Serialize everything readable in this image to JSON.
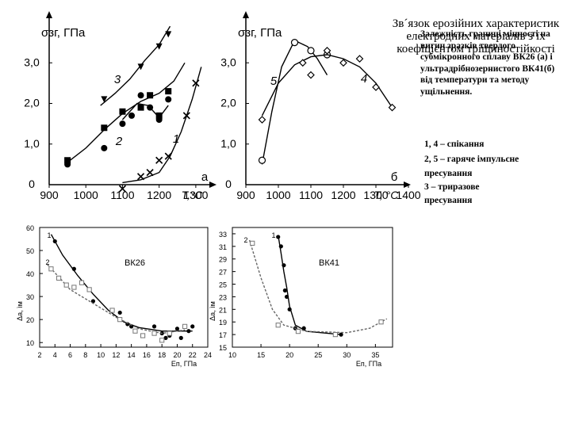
{
  "titles": {
    "main": "Зв´язок ерозійних характеристик електродних матеріалів з їх коефіцієнтом тріщиностійкості",
    "sub": "Залежність границі міцності на вигин зразків твердого субмікронного сплаву ВК26 (а) і ультрадрібнозернистого ВК41(б) від температури та методу ущільнення."
  },
  "legend_text": [
    "1, 4 – спікання",
    "2, 5 – гаряче імпульсне",
    "пресування",
    "3 –    триразове",
    "пресування"
  ],
  "chart_data": [
    {
      "id": "a",
      "type": "scatter",
      "title": "",
      "ylabel": "σзг, ГПа",
      "xlabel": "T,°C",
      "panel_label": "а",
      "xlim": [
        900,
        1350
      ],
      "ylim": [
        0,
        4.0
      ],
      "xticks": [
        "900",
        "1000",
        "1100",
        "1200",
        "1300"
      ],
      "yticks": [
        "0",
        "1,0",
        "2,0",
        "3,0"
      ],
      "series": [
        {
          "name": "3",
          "marker": "triangle",
          "points": [
            [
              1050,
              2.1
            ],
            [
              1150,
              2.9
            ],
            [
              1200,
              3.4
            ],
            [
              1225,
              3.7
            ]
          ],
          "curve": [
            [
              1040,
              1.95
            ],
            [
              1080,
              2.25
            ],
            [
              1120,
              2.6
            ],
            [
              1160,
              3.05
            ],
            [
              1200,
              3.45
            ],
            [
              1230,
              3.9
            ]
          ]
        },
        {
          "name": "2",
          "marker": "square",
          "points": [
            [
              950,
              0.6
            ],
            [
              1050,
              1.4
            ],
            [
              1100,
              1.8
            ],
            [
              1150,
              1.9
            ],
            [
              1175,
              2.2
            ],
            [
              1200,
              1.7
            ],
            [
              1225,
              2.3
            ]
          ],
          "curve": [
            [
              950,
              0.55
            ],
            [
              1000,
              0.9
            ],
            [
              1050,
              1.35
            ],
            [
              1100,
              1.75
            ],
            [
              1150,
              2.05
            ],
            [
              1200,
              2.25
            ],
            [
              1240,
              2.55
            ],
            [
              1270,
              3.0
            ]
          ]
        },
        {
          "name": "",
          "marker": "circle",
          "points": [
            [
              950,
              0.5
            ],
            [
              1050,
              0.9
            ],
            [
              1100,
              1.5
            ],
            [
              1125,
              1.7
            ],
            [
              1150,
              2.2
            ],
            [
              1175,
              1.9
            ],
            [
              1200,
              1.6
            ],
            [
              1225,
              2.1
            ]
          ],
          "curve": [
            [
              1100,
              1.6
            ],
            [
              1140,
              2.0
            ],
            [
              1170,
              1.95
            ],
            [
              1200,
              1.65
            ],
            [
              1225,
              1.95
            ]
          ]
        },
        {
          "name": "1",
          "marker": "cross",
          "points": [
            [
              1100,
              -0.1
            ],
            [
              1150,
              0.2
            ],
            [
              1175,
              0.3
            ],
            [
              1200,
              0.6
            ],
            [
              1225,
              0.7
            ],
            [
              1275,
              1.7
            ],
            [
              1300,
              2.5
            ]
          ],
          "curve": [
            [
              1100,
              0.05
            ],
            [
              1150,
              0.12
            ],
            [
              1200,
              0.3
            ],
            [
              1230,
              0.7
            ],
            [
              1260,
              1.3
            ],
            [
              1290,
              2.1
            ],
            [
              1315,
              2.9
            ]
          ]
        }
      ],
      "series_labels": [
        "3",
        "2",
        "1"
      ]
    },
    {
      "id": "b",
      "type": "scatter",
      "title": "",
      "ylabel": "σзг, ГПа",
      "xlabel": "T, °C",
      "panel_label": "б",
      "xlim": [
        900,
        1400
      ],
      "ylim": [
        0,
        4.0
      ],
      "xticks": [
        "900",
        "1000",
        "1100",
        "1200",
        "1300",
        "1400"
      ],
      "yticks": [
        "0",
        "1,0",
        "2,0",
        "3,0"
      ],
      "series": [
        {
          "name": "5",
          "marker": "circle-open",
          "points": [
            [
              950,
              0.6
            ],
            [
              1050,
              3.5
            ],
            [
              1100,
              3.3
            ],
            [
              1150,
              3.2
            ]
          ],
          "curve": [
            [
              950,
              0.5
            ],
            [
              980,
              1.8
            ],
            [
              1010,
              2.9
            ],
            [
              1050,
              3.55
            ],
            [
              1090,
              3.4
            ],
            [
              1120,
              3.1
            ],
            [
              1150,
              2.7
            ]
          ]
        },
        {
          "name": "4",
          "marker": "diamond",
          "points": [
            [
              950,
              1.6
            ],
            [
              1075,
              3.0
            ],
            [
              1100,
              2.7
            ],
            [
              1150,
              3.3
            ],
            [
              1200,
              3.0
            ],
            [
              1250,
              3.1
            ],
            [
              1300,
              2.4
            ],
            [
              1350,
              1.9
            ]
          ],
          "curve": [
            [
              950,
              1.7
            ],
            [
              1000,
              2.5
            ],
            [
              1050,
              2.95
            ],
            [
              1100,
              3.15
            ],
            [
              1150,
              3.2
            ],
            [
              1200,
              3.1
            ],
            [
              1250,
              2.9
            ],
            [
              1300,
              2.5
            ],
            [
              1350,
              1.9
            ]
          ]
        }
      ],
      "series_labels": [
        "5",
        "4"
      ]
    },
    {
      "id": "c",
      "type": "scatter",
      "title": "",
      "annotation": "ВК26",
      "ylabel": "Δа, ìм",
      "xlabel": "Еп, ГПа",
      "xlim": [
        2,
        24
      ],
      "ylim": [
        8,
        60
      ],
      "xticks": [
        "2",
        "4",
        "6",
        "8",
        "10",
        "12",
        "14",
        "16",
        "18",
        "20",
        "22",
        "24"
      ],
      "yticks": [
        "10",
        "20",
        "30",
        "40",
        "50",
        "60"
      ],
      "series": [
        {
          "name": "1",
          "marker": "dot",
          "points": [
            [
              4,
              54
            ],
            [
              6.5,
              42
            ],
            [
              9,
              28
            ],
            [
              12.5,
              23
            ],
            [
              13.5,
              18
            ],
            [
              14,
              17
            ],
            [
              17,
              17
            ],
            [
              18,
              14
            ],
            [
              18.5,
              12
            ],
            [
              19,
              13
            ],
            [
              20,
              16
            ],
            [
              20.5,
              12
            ],
            [
              21.5,
              15
            ],
            [
              22,
              17
            ]
          ],
          "curve": [
            [
              3.5,
              57
            ],
            [
              5,
              48
            ],
            [
              7,
              39
            ],
            [
              9,
              31
            ],
            [
              11,
              24
            ],
            [
              13,
              19
            ],
            [
              15,
              16.5
            ],
            [
              18,
              15
            ],
            [
              22,
              15
            ]
          ]
        },
        {
          "name": "2",
          "marker": "square-open",
          "points": [
            [
              3.5,
              42
            ],
            [
              4.5,
              38
            ],
            [
              5.5,
              35
            ],
            [
              6.5,
              34
            ],
            [
              7.5,
              36
            ],
            [
              8.5,
              33
            ],
            [
              11.5,
              24
            ],
            [
              12.5,
              20
            ],
            [
              14.5,
              15
            ],
            [
              15.5,
              13
            ],
            [
              17,
              14
            ],
            [
              18,
              11
            ],
            [
              19,
              14
            ],
            [
              21,
              17
            ]
          ],
          "curve": [
            [
              3,
              44
            ],
            [
              6,
              33
            ],
            [
              9,
              27
            ],
            [
              12,
              21
            ],
            [
              15,
              16
            ],
            [
              18,
              14
            ],
            [
              21,
              15.5
            ]
          ]
        }
      ],
      "series_labels": [
        "1",
        "2"
      ]
    },
    {
      "id": "d",
      "type": "scatter",
      "title": "",
      "annotation": "ВК41",
      "ylabel": "Δа, ìм",
      "xlabel": "Еп, ГПа",
      "xlim": [
        10,
        38
      ],
      "ylim": [
        15,
        34
      ],
      "xticks": [
        "10",
        "15",
        "20",
        "25",
        "30",
        "35"
      ],
      "yticks": [
        "15",
        "17",
        "19",
        "21",
        "23",
        "25",
        "27",
        "29",
        "31",
        "33"
      ],
      "series": [
        {
          "name": "1",
          "marker": "dot",
          "points": [
            [
              18,
              32.5
            ],
            [
              18.5,
              31
            ],
            [
              19,
              28
            ],
            [
              19.2,
              24
            ],
            [
              19.5,
              23
            ],
            [
              20,
              21
            ],
            [
              21,
              18
            ],
            [
              22.5,
              18
            ],
            [
              29,
              17
            ]
          ],
          "curve": [
            [
              18,
              32.8
            ],
            [
              18.5,
              30
            ],
            [
              19,
              27
            ],
            [
              19.5,
              24.5
            ],
            [
              20,
              21.5
            ],
            [
              21,
              18.5
            ],
            [
              23,
              17.5
            ],
            [
              29,
              17
            ]
          ]
        },
        {
          "name": "2",
          "marker": "square-open",
          "points": [
            [
              13.5,
              31.5
            ],
            [
              18,
              18.5
            ],
            [
              21.5,
              17.5
            ],
            [
              28,
              17
            ],
            [
              36,
              19
            ]
          ],
          "curve": [
            [
              13,
              32
            ],
            [
              15,
              26
            ],
            [
              17,
              21
            ],
            [
              19,
              18.5
            ],
            [
              23,
              17.5
            ],
            [
              30,
              17.3
            ],
            [
              34,
              18
            ],
            [
              37,
              19.5
            ]
          ]
        }
      ],
      "series_labels": [
        "2",
        "1"
      ]
    }
  ]
}
